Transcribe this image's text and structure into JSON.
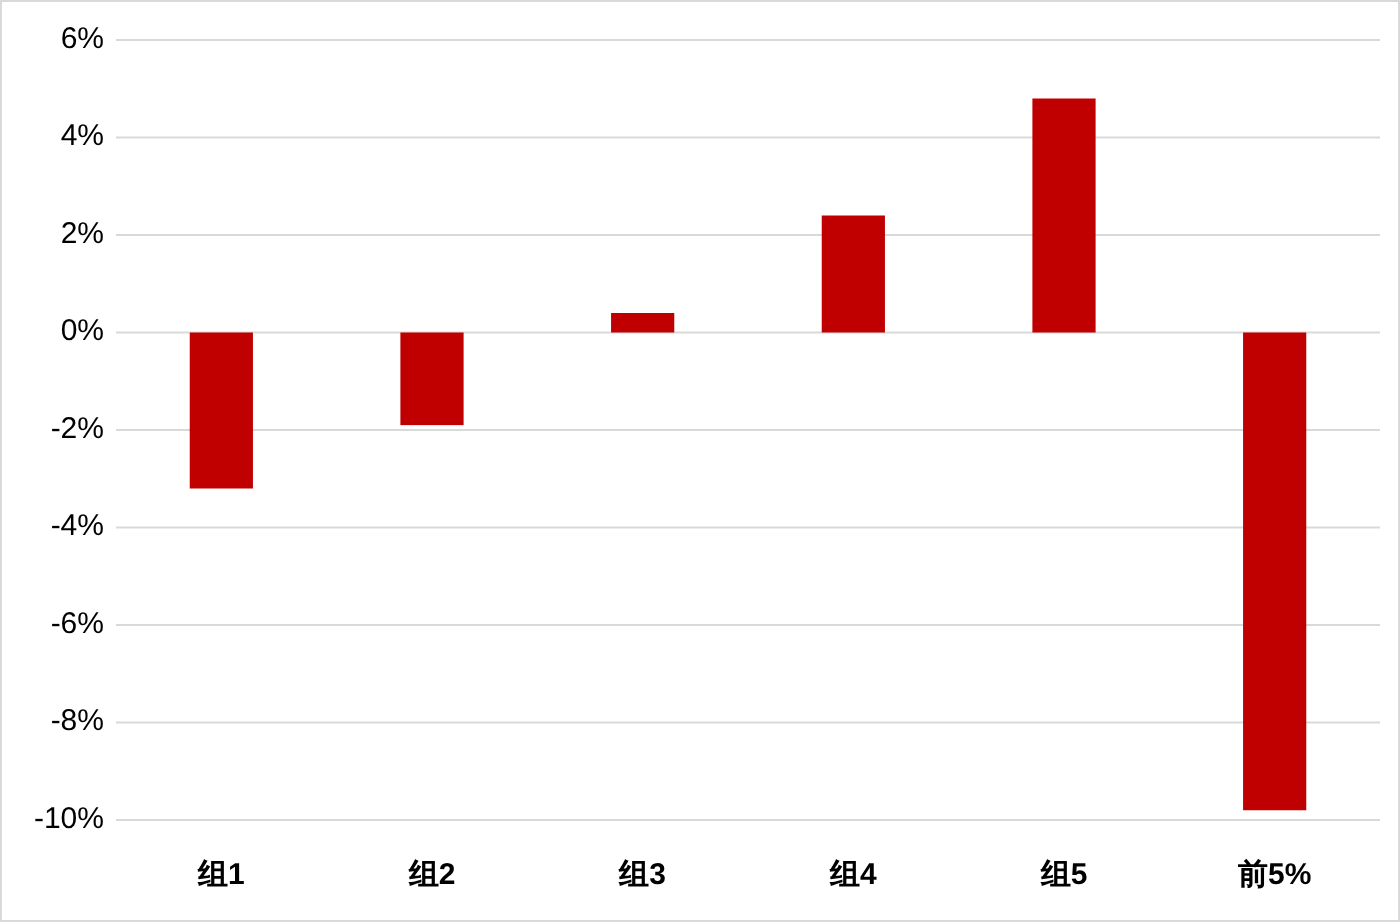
{
  "chart_data": {
    "type": "bar",
    "categories": [
      "组1",
      "组2",
      "组3",
      "组4",
      "组5",
      "前5%"
    ],
    "values": [
      -3.2,
      -1.9,
      0.4,
      2.4,
      4.8,
      -9.8
    ],
    "color": "#c00000",
    "ylim": [
      -10,
      6
    ],
    "yticks": [
      {
        "value": -10,
        "label": "-10%"
      },
      {
        "value": -8,
        "label": "-8%"
      },
      {
        "value": -6,
        "label": "-6%"
      },
      {
        "value": -4,
        "label": "-4%"
      },
      {
        "value": -2,
        "label": "-2%"
      },
      {
        "value": 0,
        "label": "0%"
      },
      {
        "value": 2,
        "label": "2%"
      },
      {
        "value": 4,
        "label": "4%"
      },
      {
        "value": 6,
        "label": "6%"
      }
    ],
    "grid": "y"
  }
}
